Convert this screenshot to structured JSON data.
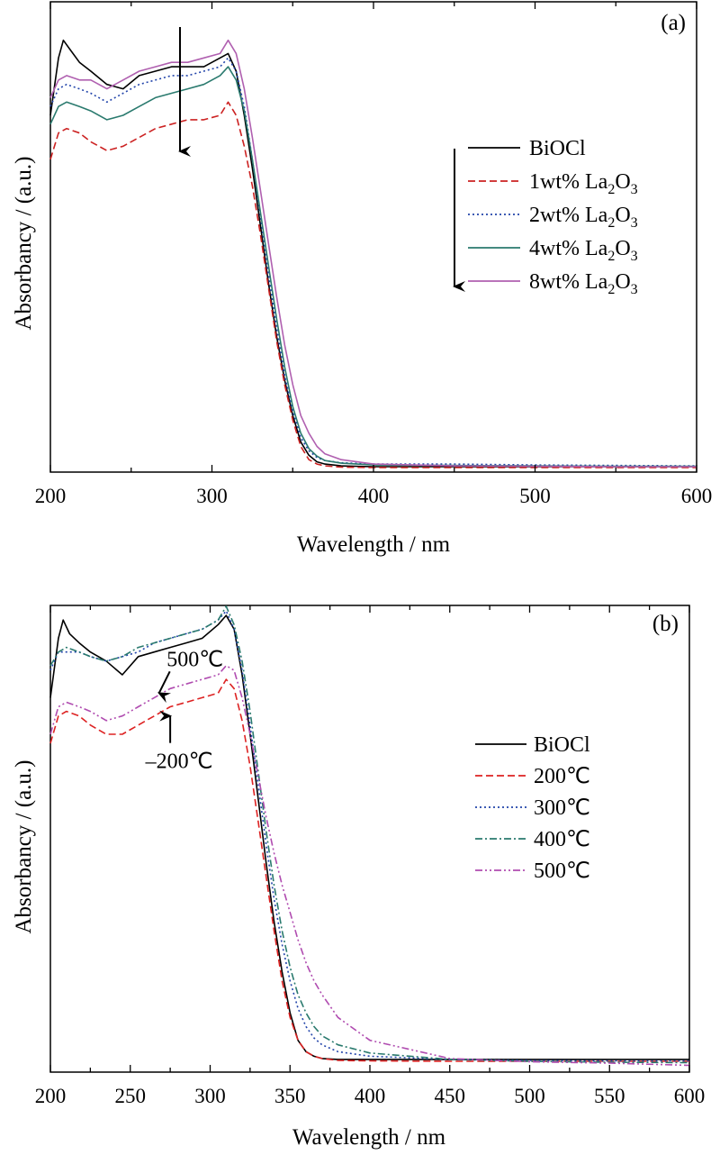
{
  "chart_data": [
    {
      "type": "line",
      "panel_label": "(a)",
      "xlabel": "Wavelength / nm",
      "ylabel": "Absorbancy / (a.u.)",
      "xlim": [
        200,
        600
      ],
      "ylim": [
        0,
        1
      ],
      "x_ticks": [
        200,
        300,
        400,
        500,
        600
      ],
      "x_minor_step": 50,
      "legend_position": "right-upper",
      "legend_arrow": true,
      "arrow_at_x": 280,
      "series": [
        {
          "name": "BiOCl",
          "subscript": "",
          "color": "#000000",
          "dash": "solid",
          "x": [
            200,
            205,
            208,
            212,
            218,
            225,
            235,
            245,
            255,
            265,
            275,
            285,
            295,
            305,
            310,
            315,
            320,
            325,
            330,
            335,
            340,
            345,
            350,
            355,
            360,
            365,
            370,
            380,
            400,
            450,
            500,
            550,
            600
          ],
          "y": [
            0.8,
            0.93,
            0.97,
            0.95,
            0.92,
            0.9,
            0.87,
            0.86,
            0.89,
            0.9,
            0.91,
            0.91,
            0.91,
            0.93,
            0.94,
            0.9,
            0.8,
            0.68,
            0.55,
            0.42,
            0.3,
            0.2,
            0.12,
            0.06,
            0.03,
            0.015,
            0.01,
            0.006,
            0.004,
            0.004,
            0.004,
            0.004,
            0.004
          ]
        },
        {
          "name": "1wt% La",
          "subscript": "2",
          "suffix": "O",
          "subscript2": "3",
          "color": "#cc2222",
          "dash": "dashed",
          "x": [
            200,
            205,
            210,
            218,
            225,
            235,
            245,
            255,
            265,
            275,
            285,
            295,
            305,
            310,
            315,
            320,
            325,
            330,
            335,
            340,
            345,
            350,
            355,
            360,
            365,
            370,
            380,
            400,
            450,
            500,
            550,
            600
          ],
          "y": [
            0.7,
            0.76,
            0.77,
            0.76,
            0.74,
            0.72,
            0.73,
            0.75,
            0.77,
            0.78,
            0.79,
            0.79,
            0.8,
            0.83,
            0.8,
            0.73,
            0.64,
            0.53,
            0.41,
            0.29,
            0.19,
            0.11,
            0.05,
            0.02,
            0.01,
            0.006,
            0.003,
            0.002,
            0.002,
            0.002,
            0.002,
            0.002
          ]
        },
        {
          "name": "2wt% La",
          "subscript": "2",
          "suffix": "O",
          "subscript2": "3",
          "color": "#2244aa",
          "dash": "dotted",
          "x": [
            200,
            205,
            210,
            218,
            225,
            235,
            245,
            255,
            265,
            275,
            285,
            295,
            305,
            310,
            315,
            320,
            325,
            330,
            335,
            340,
            345,
            350,
            355,
            360,
            365,
            370,
            380,
            400,
            450,
            500,
            550,
            600
          ],
          "y": [
            0.82,
            0.86,
            0.87,
            0.86,
            0.85,
            0.83,
            0.85,
            0.87,
            0.88,
            0.89,
            0.89,
            0.9,
            0.91,
            0.93,
            0.9,
            0.82,
            0.7,
            0.57,
            0.44,
            0.32,
            0.21,
            0.13,
            0.07,
            0.04,
            0.025,
            0.018,
            0.013,
            0.01,
            0.01,
            0.008,
            0.007,
            0.006
          ]
        },
        {
          "name": "4wt% La",
          "subscript": "2",
          "suffix": "O",
          "subscript2": "3",
          "color": "#2a7a6e",
          "dash": "solid",
          "x": [
            200,
            205,
            210,
            218,
            225,
            235,
            245,
            255,
            265,
            275,
            285,
            295,
            305,
            310,
            315,
            320,
            325,
            330,
            335,
            340,
            345,
            350,
            355,
            360,
            365,
            370,
            380,
            400,
            450,
            500,
            550,
            600
          ],
          "y": [
            0.78,
            0.82,
            0.83,
            0.82,
            0.81,
            0.79,
            0.8,
            0.82,
            0.84,
            0.85,
            0.86,
            0.87,
            0.89,
            0.91,
            0.88,
            0.81,
            0.7,
            0.58,
            0.46,
            0.34,
            0.23,
            0.14,
            0.08,
            0.045,
            0.028,
            0.018,
            0.012,
            0.008,
            0.007,
            0.006,
            0.005,
            0.005
          ]
        },
        {
          "name": "8wt% La",
          "subscript": "2",
          "suffix": "O",
          "subscript2": "3",
          "color": "#b060b0",
          "dash": "solid",
          "x": [
            200,
            205,
            210,
            218,
            225,
            235,
            245,
            255,
            265,
            275,
            285,
            295,
            305,
            310,
            315,
            320,
            325,
            330,
            335,
            340,
            345,
            350,
            355,
            360,
            365,
            370,
            380,
            400,
            450,
            500,
            550,
            600
          ],
          "y": [
            0.84,
            0.88,
            0.89,
            0.88,
            0.88,
            0.86,
            0.88,
            0.9,
            0.91,
            0.92,
            0.92,
            0.93,
            0.94,
            0.97,
            0.94,
            0.86,
            0.75,
            0.63,
            0.51,
            0.39,
            0.28,
            0.19,
            0.12,
            0.08,
            0.05,
            0.033,
            0.02,
            0.01,
            0.006,
            0.005,
            0.004,
            0.004
          ]
        }
      ]
    },
    {
      "type": "line",
      "panel_label": "(b)",
      "xlabel": "Wavelength / nm",
      "ylabel": "Absorbancy / (a.u.)",
      "xlim": [
        200,
        600
      ],
      "ylim": [
        0,
        1
      ],
      "x_ticks": [
        200,
        250,
        300,
        350,
        400,
        450,
        500,
        550,
        600
      ],
      "x_minor_step": 25,
      "legend_position": "right-upper",
      "annotations": [
        {
          "text": "500℃",
          "arrow_tip_x": 268,
          "arrow_tip_y": 0.81,
          "direction": "down"
        },
        {
          "text": "–200℃",
          "arrow_tip_x": 275,
          "arrow_tip_y": 0.76,
          "direction": "up"
        }
      ],
      "series": [
        {
          "name": "BiOCl",
          "color": "#000000",
          "dash": "solid",
          "x": [
            200,
            205,
            208,
            212,
            218,
            225,
            235,
            245,
            255,
            265,
            275,
            285,
            295,
            305,
            310,
            315,
            320,
            325,
            330,
            335,
            340,
            345,
            350,
            355,
            360,
            365,
            370,
            380,
            400,
            450,
            500,
            550,
            600
          ],
          "y": [
            0.8,
            0.93,
            0.97,
            0.94,
            0.92,
            0.9,
            0.88,
            0.85,
            0.89,
            0.9,
            0.91,
            0.92,
            0.93,
            0.96,
            0.98,
            0.95,
            0.85,
            0.72,
            0.58,
            0.44,
            0.31,
            0.2,
            0.11,
            0.05,
            0.025,
            0.015,
            0.01,
            0.008,
            0.008,
            0.008,
            0.008,
            0.008,
            0.008
          ]
        },
        {
          "name": "200℃",
          "color": "#dd2222",
          "dash": "dashed",
          "x": [
            200,
            205,
            210,
            218,
            225,
            235,
            245,
            255,
            265,
            275,
            285,
            295,
            305,
            310,
            315,
            320,
            325,
            330,
            335,
            340,
            345,
            350,
            355,
            360,
            365,
            370,
            380,
            400,
            450,
            500,
            550,
            600
          ],
          "y": [
            0.7,
            0.76,
            0.77,
            0.76,
            0.74,
            0.72,
            0.72,
            0.74,
            0.76,
            0.78,
            0.79,
            0.8,
            0.81,
            0.84,
            0.82,
            0.75,
            0.65,
            0.53,
            0.41,
            0.29,
            0.18,
            0.1,
            0.05,
            0.025,
            0.015,
            0.01,
            0.006,
            0.005,
            0.004,
            0.004,
            0.004,
            0.004
          ]
        },
        {
          "name": "300℃",
          "color": "#2244aa",
          "dash": "dotted",
          "x": [
            200,
            205,
            210,
            218,
            225,
            235,
            245,
            255,
            265,
            275,
            285,
            295,
            305,
            310,
            315,
            320,
            325,
            330,
            335,
            340,
            345,
            350,
            355,
            360,
            365,
            370,
            380,
            400,
            450,
            500,
            550,
            600
          ],
          "y": [
            0.86,
            0.9,
            0.9,
            0.9,
            0.89,
            0.88,
            0.89,
            0.9,
            0.92,
            0.93,
            0.94,
            0.95,
            0.97,
            0.99,
            0.95,
            0.86,
            0.74,
            0.61,
            0.48,
            0.36,
            0.26,
            0.18,
            0.12,
            0.08,
            0.055,
            0.04,
            0.025,
            0.015,
            0.008,
            0.006,
            0.005,
            0.005
          ]
        },
        {
          "name": "400℃",
          "color": "#2a7a6e",
          "dash": "dashdot",
          "x": [
            200,
            205,
            210,
            218,
            225,
            235,
            245,
            255,
            265,
            275,
            285,
            295,
            305,
            310,
            315,
            320,
            325,
            330,
            335,
            340,
            345,
            350,
            355,
            360,
            365,
            370,
            380,
            400,
            450,
            500,
            550,
            600
          ],
          "y": [
            0.87,
            0.9,
            0.91,
            0.9,
            0.89,
            0.88,
            0.89,
            0.91,
            0.92,
            0.93,
            0.94,
            0.95,
            0.97,
            1.0,
            0.96,
            0.88,
            0.77,
            0.64,
            0.51,
            0.39,
            0.29,
            0.21,
            0.15,
            0.11,
            0.08,
            0.06,
            0.04,
            0.022,
            0.008,
            0.004,
            0.002,
            0.001
          ]
        },
        {
          "name": "500℃",
          "color": "#b04cb0",
          "dash": "dashdotdot",
          "x": [
            200,
            205,
            210,
            218,
            225,
            235,
            245,
            255,
            265,
            275,
            285,
            295,
            305,
            310,
            315,
            320,
            325,
            330,
            335,
            340,
            345,
            350,
            355,
            360,
            365,
            370,
            380,
            400,
            450,
            500,
            550,
            600
          ],
          "y": [
            0.72,
            0.78,
            0.79,
            0.78,
            0.77,
            0.75,
            0.76,
            0.78,
            0.8,
            0.82,
            0.83,
            0.84,
            0.85,
            0.87,
            0.86,
            0.8,
            0.72,
            0.63,
            0.54,
            0.46,
            0.39,
            0.33,
            0.27,
            0.22,
            0.18,
            0.15,
            0.1,
            0.05,
            0.01,
            0.003,
            0.0,
            -0.005
          ]
        }
      ]
    }
  ]
}
